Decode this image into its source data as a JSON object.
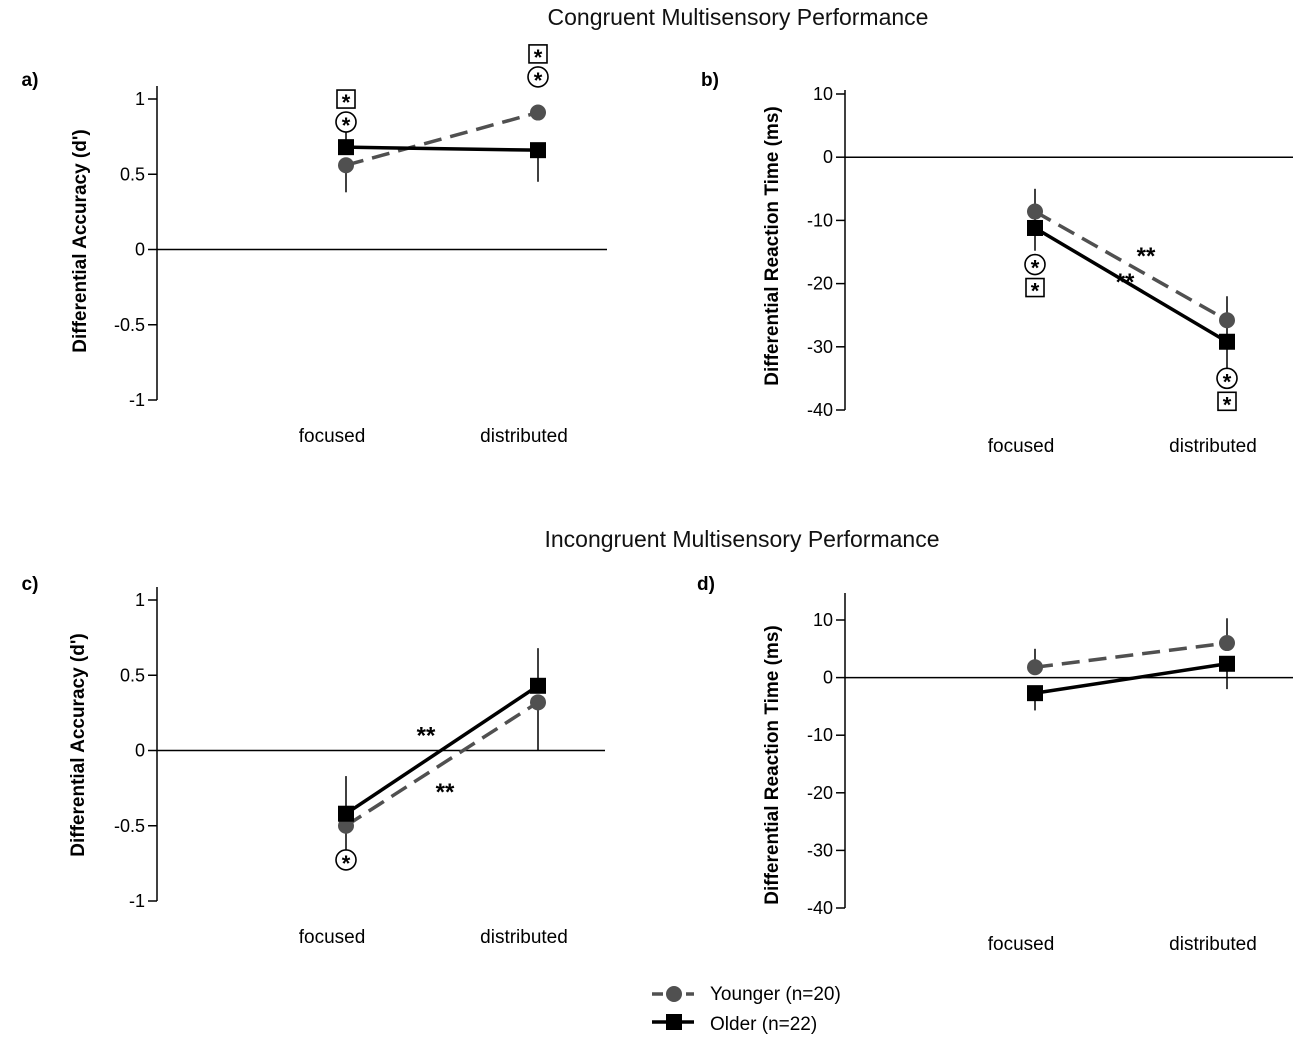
{
  "section_titles": {
    "top": "Congruent Multisensory Performance",
    "bottom": "Incongruent Multisensory Performance"
  },
  "legend": {
    "younger": "Younger (n=20)",
    "older": "Older (n=22)"
  },
  "colors": {
    "younger": "#505050",
    "older": "#000000"
  },
  "chart_data": [
    {
      "panel": "a)",
      "type": "line",
      "ylabel": "Differential Accuracy (d')",
      "categories": [
        "focused",
        "distributed"
      ],
      "ylim": [
        -1,
        1
      ],
      "yticks": [
        1,
        0.5,
        0,
        -0.5,
        -1
      ],
      "ytick_labels": [
        "1",
        "0.5",
        "0",
        "-0.5",
        "-1"
      ],
      "series": [
        {
          "name": "Younger (n=20)",
          "values": [
            0.56,
            0.91
          ],
          "err_low": [
            0.38,
            0.91
          ],
          "err_high": [
            0.56,
            0.91
          ]
        },
        {
          "name": "Older (n=22)",
          "values": [
            0.68,
            0.66
          ],
          "err_low": [
            0.68,
            0.45
          ],
          "err_high": [
            0.86,
            0.66
          ]
        }
      ],
      "annotations": [
        {
          "category": 0,
          "value": 0.9,
          "symbols": [
            "box",
            "circle"
          ]
        },
        {
          "category": 1,
          "value": 1.2,
          "symbols": [
            "box",
            "circle"
          ]
        }
      ],
      "slope_stars": []
    },
    {
      "panel": "b)",
      "type": "line",
      "ylabel": "Differential Reaction Time (ms)",
      "categories": [
        "focused",
        "distributed"
      ],
      "ylim": [
        -40,
        10
      ],
      "yticks": [
        10,
        0,
        -10,
        -20,
        -30,
        -40
      ],
      "ytick_labels": [
        "10",
        "0",
        "-10",
        "-20",
        "-30",
        "-40"
      ],
      "series": [
        {
          "name": "Younger (n=20)",
          "values": [
            -8.6,
            -25.8
          ],
          "err_low": [
            -8.6,
            -25.8
          ],
          "err_high": [
            -8.6,
            -25.8
          ]
        },
        {
          "name": "Older (n=22)",
          "values": [
            -11.2,
            -29.2
          ],
          "err_low": [
            -14.8,
            -34.5
          ],
          "err_high": [
            -5.0,
            -22.0
          ]
        }
      ],
      "annotations": [
        {
          "category": 0,
          "value": -19.2,
          "symbols": [
            "circle",
            "box"
          ]
        },
        {
          "category": 1,
          "value": -37.2,
          "symbols": [
            "circle",
            "box"
          ]
        }
      ],
      "slope_stars": [
        "**",
        "**"
      ]
    },
    {
      "panel": "c)",
      "type": "line",
      "ylabel": "Differential Accuracy (d')",
      "categories": [
        "focused",
        "distributed"
      ],
      "ylim": [
        -1,
        1
      ],
      "yticks": [
        1,
        0.5,
        0,
        -0.5,
        -1
      ],
      "ytick_labels": [
        "1",
        "0.5",
        "0",
        "-0.5",
        "-1"
      ],
      "series": [
        {
          "name": "Younger (n=20)",
          "values": [
            -0.5,
            0.32
          ],
          "err_low": [
            -0.5,
            0.0
          ],
          "err_high": [
            -0.5,
            0.32
          ]
        },
        {
          "name": "Older (n=22)",
          "values": [
            -0.42,
            0.43
          ],
          "err_low": [
            -0.72,
            0.43
          ],
          "err_high": [
            -0.17,
            0.68
          ]
        }
      ],
      "annotations": [
        {
          "category": 0,
          "value": -0.82,
          "symbols": [
            "circle"
          ]
        }
      ],
      "slope_stars": [
        "**",
        "**"
      ]
    },
    {
      "panel": "d)",
      "type": "line",
      "ylabel": "Differential Reaction Time (ms)",
      "categories": [
        "focused",
        "distributed"
      ],
      "ylim": [
        -40,
        15
      ],
      "yticks": [
        10,
        0,
        -10,
        -20,
        -30,
        -40
      ],
      "ytick_labels": [
        "10",
        "0",
        "-10",
        "-20",
        "-30",
        "-40"
      ],
      "series": [
        {
          "name": "Younger (n=20)",
          "values": [
            1.8,
            6.0
          ],
          "err_low": [
            1.8,
            6.0
          ],
          "err_high": [
            5.0,
            10.3
          ]
        },
        {
          "name": "Older (n=22)",
          "values": [
            -2.7,
            2.4
          ],
          "err_low": [
            -5.7,
            -2.0
          ],
          "err_high": [
            -2.7,
            2.4
          ]
        }
      ],
      "annotations": [],
      "slope_stars": []
    }
  ]
}
